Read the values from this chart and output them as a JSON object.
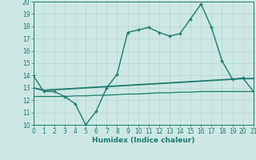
{
  "x": [
    0,
    1,
    2,
    3,
    4,
    5,
    6,
    7,
    8,
    9,
    10,
    11,
    12,
    13,
    14,
    15,
    16,
    17,
    18,
    19,
    20,
    21
  ],
  "humidex": [
    14.0,
    12.7,
    12.7,
    12.3,
    11.7,
    10.0,
    11.1,
    13.0,
    14.1,
    17.5,
    17.7,
    17.9,
    17.5,
    17.2,
    17.4,
    18.6,
    19.8,
    17.9,
    15.2,
    13.7,
    13.8,
    12.7
  ],
  "line2": [
    13.0,
    12.8,
    12.85,
    12.9,
    12.95,
    13.0,
    13.05,
    13.1,
    13.15,
    13.2,
    13.25,
    13.3,
    13.35,
    13.4,
    13.45,
    13.5,
    13.55,
    13.6,
    13.65,
    13.7,
    13.75,
    13.75
  ],
  "line3": [
    12.3,
    12.3,
    12.3,
    12.3,
    12.35,
    12.35,
    12.4,
    12.4,
    12.45,
    12.5,
    12.5,
    12.55,
    12.6,
    12.6,
    12.65,
    12.65,
    12.7,
    12.7,
    12.7,
    12.7,
    12.7,
    12.7
  ],
  "xlabel": "Humidex (Indice chaleur)",
  "ylim": [
    10,
    20
  ],
  "xlim": [
    0,
    21
  ],
  "yticks": [
    10,
    11,
    12,
    13,
    14,
    15,
    16,
    17,
    18,
    19,
    20
  ],
  "xticks": [
    0,
    1,
    2,
    3,
    4,
    5,
    6,
    7,
    8,
    9,
    10,
    11,
    12,
    13,
    14,
    15,
    16,
    17,
    18,
    19,
    20,
    21
  ],
  "line_color": "#1a7a6e",
  "bg_color": "#cde8e4",
  "grid_color": "#b8d8d4"
}
